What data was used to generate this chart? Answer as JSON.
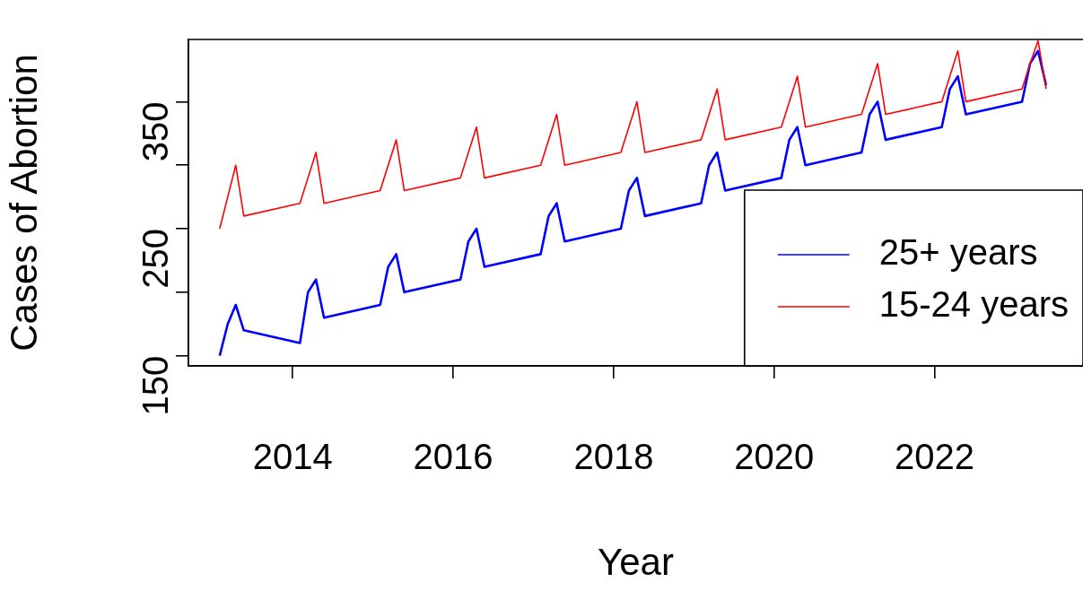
{
  "chart_data": {
    "type": "line",
    "xlabel": "Year",
    "ylabel": "Cases of Abortion",
    "xlim": [
      2012.7,
      2023.85
    ],
    "ylim": [
      142,
      399
    ],
    "xticks": [
      2014,
      2016,
      2018,
      2020,
      2022
    ],
    "yticks": [
      150,
      {
        "value": 200,
        "label": null
      },
      250,
      {
        "value": 300,
        "label": null
      },
      350
    ],
    "grid": false,
    "legend": "bottom right",
    "series": [
      {
        "name": "25+ years",
        "color": "#0000ff",
        "x": [
          2013.09,
          2013.19,
          2013.29,
          2013.39,
          2014.09,
          2014.19,
          2014.29,
          2014.39,
          2015.09,
          2015.19,
          2015.29,
          2015.39,
          2016.09,
          2016.19,
          2016.29,
          2016.39,
          2017.09,
          2017.19,
          2017.29,
          2017.39,
          2018.09,
          2018.19,
          2018.29,
          2018.39,
          2019.09,
          2019.19,
          2019.29,
          2019.39,
          2020.09,
          2020.19,
          2020.29,
          2020.39,
          2021.09,
          2021.19,
          2021.29,
          2021.39,
          2022.09,
          2022.19,
          2022.29,
          2022.39,
          2023.09,
          2023.19,
          2023.29,
          2023.39
        ],
        "values": [
          150,
          175,
          190,
          170,
          160,
          200,
          210,
          180,
          190,
          220,
          230,
          200,
          210,
          240,
          250,
          220,
          230,
          260,
          270,
          240,
          250,
          280,
          290,
          260,
          270,
          300,
          310,
          280,
          290,
          320,
          330,
          300,
          310,
          340,
          350,
          320,
          330,
          360,
          370,
          340,
          350,
          380,
          390,
          363
        ]
      },
      {
        "name": "15-24 years",
        "color": "#ff0000",
        "x": [
          2013.09,
          2013.19,
          2013.29,
          2013.39,
          2014.09,
          2014.19,
          2014.29,
          2014.39,
          2015.09,
          2015.19,
          2015.29,
          2015.39,
          2016.09,
          2016.19,
          2016.29,
          2016.39,
          2017.09,
          2017.19,
          2017.29,
          2017.39,
          2018.09,
          2018.19,
          2018.29,
          2018.39,
          2019.09,
          2019.19,
          2019.29,
          2019.39,
          2020.09,
          2020.19,
          2020.29,
          2020.39,
          2021.09,
          2021.19,
          2021.29,
          2021.39,
          2022.09,
          2022.19,
          2022.29,
          2022.39,
          2023.09,
          2023.19,
          2023.29,
          2023.39
        ],
        "values": [
          250,
          275,
          300,
          260,
          270,
          290,
          310,
          270,
          280,
          300,
          320,
          280,
          290,
          310,
          330,
          290,
          300,
          320,
          340,
          300,
          310,
          330,
          350,
          310,
          320,
          340,
          360,
          320,
          330,
          350,
          370,
          330,
          340,
          360,
          380,
          340,
          350,
          370,
          390,
          350,
          360,
          380,
          398,
          360
        ]
      }
    ]
  }
}
